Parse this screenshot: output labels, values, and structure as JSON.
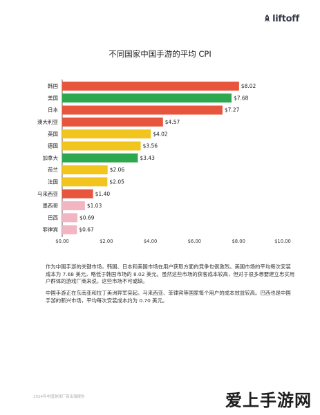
{
  "brand": {
    "logo_text": "liftoff"
  },
  "chart_data": {
    "type": "bar",
    "orientation": "horizontal",
    "title": "不同国家中国手游的平均 CPI",
    "categories": [
      "韩国",
      "美国",
      "日本",
      "澳大利亚",
      "英国",
      "德国",
      "加拿大",
      "荷兰",
      "法国",
      "马来西亚",
      "墨西哥",
      "巴西",
      "菲律宾"
    ],
    "values": [
      8.02,
      7.68,
      7.27,
      4.57,
      4.02,
      3.56,
      3.43,
      2.06,
      2.05,
      1.4,
      1.03,
      0.69,
      0.67
    ],
    "value_labels": [
      "$8.02",
      "$7.68",
      "$7.27",
      "$4.57",
      "$4.02",
      "$3.56",
      "$3.43",
      "$2.06",
      "$2.05",
      "$1.40",
      "$1.03",
      "$0.69",
      "$0.67"
    ],
    "bar_colors": [
      "#e8553d",
      "#2ea84e",
      "#e8553d",
      "#e8553d",
      "#f2c41e",
      "#f2c41e",
      "#2ea84e",
      "#f2c41e",
      "#f2c41e",
      "#e8553d",
      "#f2b5c2",
      "#f2b5c2",
      "#f2b5c2"
    ],
    "xlim": [
      0,
      10
    ],
    "xticks": [
      0,
      2,
      4,
      6,
      8,
      10
    ],
    "xtick_labels": [
      "$0.00",
      "$2.00",
      "$4.00",
      "$6.00",
      "$8.00",
      "$10.00"
    ],
    "grid": false
  },
  "text": {
    "paragraph1": "作为中国手游的关键市场，韩国、日本和美国市场在用户获取方面的竞争也很激烈。美国市场的平均每次安装成本为 7.68 美元，略低于韩国市场的 8.02 美元。虽然这些市场的获客成本较高，但对于很多想要建立忠实用户群体的游戏厂商来说，这些市场不可或缺。",
    "paragraph2": "中国手游正在东南亚和拉丁美洲异军突起。马来西亚、菲律宾等国家每个用户的成本效益较高。巴西也是中国手游的新兴市场，平均每次安装成本约为 0.70 美元。",
    "footer": "2024年中国游戏厂商出海报告"
  },
  "watermark": "爱上手游网"
}
